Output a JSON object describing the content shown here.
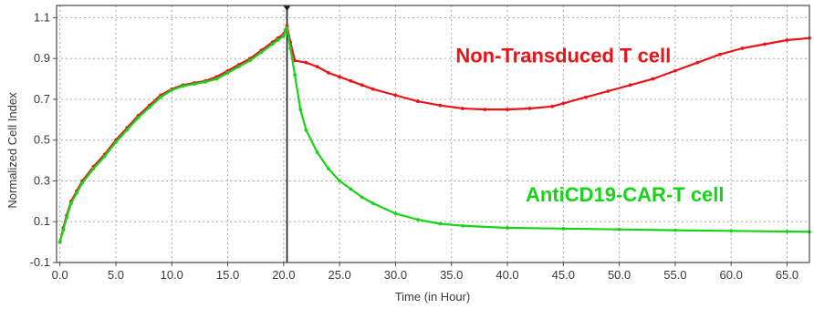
{
  "chart_data": {
    "type": "line",
    "title": "",
    "xlabel": "Time (in Hour)",
    "ylabel": "Normalized Cell Index",
    "xlim": [
      -0.3,
      67.0
    ],
    "ylim": [
      -0.1,
      1.16
    ],
    "x_ticks": [
      {
        "value": 0,
        "label": "0.0"
      },
      {
        "value": 5,
        "label": "5.0"
      },
      {
        "value": 10,
        "label": "10.0"
      },
      {
        "value": 15,
        "label": "15.0"
      },
      {
        "value": 20,
        "label": "20.0"
      },
      {
        "value": 25,
        "label": "25.0"
      },
      {
        "value": 30,
        "label": "30.0"
      },
      {
        "value": 35,
        "label": "35.0"
      },
      {
        "value": 40,
        "label": "40.0"
      },
      {
        "value": 45,
        "label": "45.0"
      },
      {
        "value": 50,
        "label": "50.0"
      },
      {
        "value": 55,
        "label": "55.0"
      },
      {
        "value": 60,
        "label": "60.0"
      },
      {
        "value": 65,
        "label": "65.0"
      }
    ],
    "y_ticks": [
      {
        "value": -0.1,
        "label": "-0.1"
      },
      {
        "value": 0.1,
        "label": "0.1"
      },
      {
        "value": 0.3,
        "label": "0.3"
      },
      {
        "value": 0.5,
        "label": "0.5"
      },
      {
        "value": 0.7,
        "label": "0.7"
      },
      {
        "value": 0.9,
        "label": "0.9"
      },
      {
        "value": 1.1,
        "label": "1.1"
      }
    ],
    "grid": true,
    "marker_x": 20.3,
    "series": [
      {
        "name": "Non-Transduced T cell",
        "color": "#e8141a",
        "x": [
          0,
          0.3,
          0.6,
          1,
          1.5,
          2,
          3,
          4,
          5,
          6,
          7,
          8,
          9,
          10,
          11,
          12,
          13,
          14,
          15,
          16,
          17,
          18,
          19,
          19.5,
          20,
          20.3,
          20.6,
          21,
          22,
          23,
          24,
          25,
          26,
          27,
          28,
          30,
          32,
          34,
          36,
          38,
          40,
          42,
          44,
          45,
          47,
          49,
          51,
          53,
          55,
          57,
          59,
          61,
          63,
          65,
          67
        ],
        "y": [
          0.0,
          0.07,
          0.13,
          0.2,
          0.25,
          0.3,
          0.37,
          0.43,
          0.5,
          0.56,
          0.62,
          0.67,
          0.72,
          0.75,
          0.77,
          0.78,
          0.79,
          0.81,
          0.84,
          0.87,
          0.9,
          0.94,
          0.98,
          1.0,
          1.02,
          1.06,
          0.98,
          0.89,
          0.88,
          0.86,
          0.83,
          0.81,
          0.79,
          0.77,
          0.75,
          0.72,
          0.69,
          0.67,
          0.655,
          0.65,
          0.65,
          0.655,
          0.665,
          0.68,
          0.71,
          0.74,
          0.77,
          0.8,
          0.84,
          0.88,
          0.92,
          0.95,
          0.97,
          0.99,
          1.0
        ]
      },
      {
        "name": "AntiCD19-CAR-T cell",
        "color": "#17d417",
        "x": [
          0,
          0.3,
          0.6,
          1,
          1.5,
          2,
          3,
          4,
          5,
          6,
          7,
          8,
          9,
          10,
          11,
          12,
          13,
          14,
          15,
          16,
          17,
          18,
          19,
          19.5,
          20,
          20.3,
          20.6,
          21,
          21.5,
          22,
          23,
          24,
          25,
          26,
          27,
          28,
          30,
          32,
          34,
          36,
          40,
          45,
          50,
          55,
          60,
          65,
          67
        ],
        "y": [
          0.0,
          0.06,
          0.12,
          0.19,
          0.24,
          0.29,
          0.36,
          0.42,
          0.49,
          0.55,
          0.61,
          0.66,
          0.71,
          0.745,
          0.765,
          0.775,
          0.785,
          0.8,
          0.83,
          0.86,
          0.89,
          0.93,
          0.97,
          0.99,
          1.01,
          1.05,
          0.95,
          0.82,
          0.65,
          0.55,
          0.44,
          0.36,
          0.3,
          0.26,
          0.22,
          0.19,
          0.14,
          0.11,
          0.09,
          0.08,
          0.07,
          0.066,
          0.062,
          0.058,
          0.055,
          0.052,
          0.05
        ]
      }
    ],
    "annotations": [
      {
        "text": "Non-Transduced T cell",
        "color": "#e8141a",
        "x": 45.0,
        "y": 0.88
      },
      {
        "text": "AntiCD19-CAR-T cell",
        "color": "#17d417",
        "x": 50.5,
        "y": 0.2
      }
    ]
  }
}
